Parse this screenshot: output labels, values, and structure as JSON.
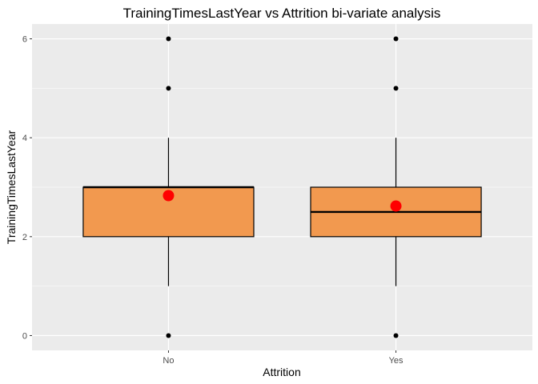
{
  "chart_data": {
    "type": "boxplot",
    "title": "TrainingTimesLastYear vs Attrition bi-variate analysis",
    "xlabel": "Attrition",
    "ylabel": "TrainingTimesLastYear",
    "categories": [
      "No",
      "Yes"
    ],
    "ylim": [
      -0.3,
      6.3
    ],
    "yticks": [
      0,
      2,
      4,
      6
    ],
    "grid": true,
    "box_fill": "#F2994F",
    "mean_color": "#FF0000",
    "panel_background": "#EBEBEB",
    "boxes": [
      {
        "category": "No",
        "min": 1,
        "q1": 2,
        "median": 3,
        "q3": 3,
        "max": 4,
        "mean": 2.83,
        "outliers": [
          0,
          5,
          6
        ]
      },
      {
        "category": "Yes",
        "min": 1,
        "q1": 2,
        "median": 2.5,
        "q3": 3,
        "max": 4,
        "mean": 2.62,
        "outliers": [
          0,
          5,
          6
        ]
      }
    ]
  }
}
